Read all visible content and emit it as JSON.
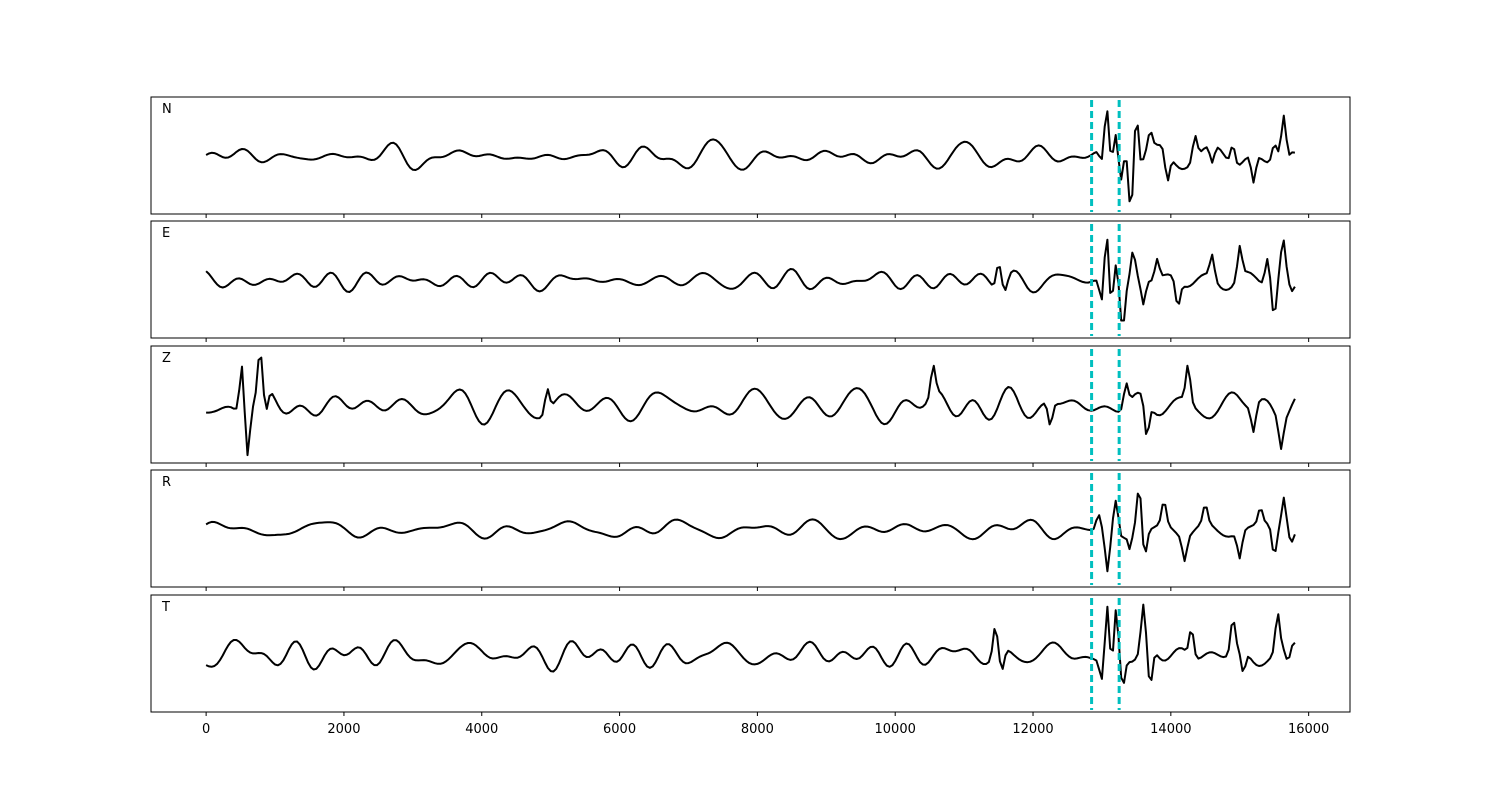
{
  "chart_data": {
    "type": "line",
    "x_range": [
      -800,
      16600
    ],
    "x_ticks": [
      "0",
      "2000",
      "4000",
      "6000",
      "8000",
      "10000",
      "12000",
      "14000",
      "16000"
    ],
    "x_tick_values": [
      0,
      2000,
      4000,
      6000,
      8000,
      10000,
      12000,
      14000,
      16000
    ],
    "grid": false,
    "trace_color": "#000000",
    "pick_color": "#00BFBF",
    "picks": [
      12850,
      13250
    ],
    "signal_end": 15800,
    "panels": [
      {
        "label": "N",
        "noise_amplitude": 0.22,
        "features": [
          {
            "x": 13000,
            "y": -0.25
          },
          {
            "x": 13070,
            "y": 0.92
          },
          {
            "x": 13130,
            "y": -0.2
          },
          {
            "x": 13200,
            "y": 0.55
          },
          {
            "x": 13280,
            "y": -0.35
          },
          {
            "x": 13340,
            "y": 0.3
          },
          {
            "x": 13420,
            "y": -0.95
          },
          {
            "x": 13500,
            "y": 0.9
          },
          {
            "x": 13560,
            "y": -0.2
          },
          {
            "x": 13700,
            "y": 0.35
          },
          {
            "x": 13950,
            "y": -0.55
          },
          {
            "x": 14350,
            "y": 0.45
          },
          {
            "x": 14600,
            "y": -0.35
          },
          {
            "x": 14900,
            "y": 0.4
          },
          {
            "x": 15200,
            "y": -0.55
          },
          {
            "x": 15500,
            "y": 0.3
          },
          {
            "x": 15640,
            "y": 0.7
          },
          {
            "x": 15700,
            "y": -0.15
          }
        ]
      },
      {
        "label": "E",
        "noise_amplitude": 0.22,
        "features": [
          {
            "x": 11500,
            "y": 0.48
          },
          {
            "x": 11600,
            "y": -0.2
          },
          {
            "x": 13000,
            "y": -0.5
          },
          {
            "x": 13070,
            "y": 1.0
          },
          {
            "x": 13130,
            "y": -0.55
          },
          {
            "x": 13200,
            "y": 0.45
          },
          {
            "x": 13300,
            "y": -0.8
          },
          {
            "x": 13450,
            "y": 0.55
          },
          {
            "x": 13600,
            "y": -0.5
          },
          {
            "x": 13800,
            "y": 0.4
          },
          {
            "x": 14100,
            "y": -0.5
          },
          {
            "x": 14600,
            "y": 0.45
          },
          {
            "x": 15000,
            "y": 0.6
          },
          {
            "x": 15400,
            "y": 0.5
          },
          {
            "x": 15500,
            "y": -0.7
          },
          {
            "x": 15630,
            "y": 0.7
          },
          {
            "x": 15750,
            "y": -0.2
          }
        ]
      },
      {
        "label": "Z",
        "noise_amplitude": 0.35,
        "features": [
          {
            "x": 520,
            "y": 0.95
          },
          {
            "x": 600,
            "y": -0.85
          },
          {
            "x": 780,
            "y": 0.8
          },
          {
            "x": 870,
            "y": -0.45
          },
          {
            "x": 4950,
            "y": 0.45
          },
          {
            "x": 10550,
            "y": 0.55
          },
          {
            "x": 12250,
            "y": -0.45
          },
          {
            "x": 13350,
            "y": 0.45
          },
          {
            "x": 13650,
            "y": -0.7
          },
          {
            "x": 14250,
            "y": 0.7
          },
          {
            "x": 15200,
            "y": -0.5
          },
          {
            "x": 15600,
            "y": -0.55
          }
        ]
      },
      {
        "label": "R",
        "noise_amplitude": 0.22,
        "features": [
          {
            "x": 12950,
            "y": 0.3
          },
          {
            "x": 13080,
            "y": -0.8
          },
          {
            "x": 13200,
            "y": 0.55
          },
          {
            "x": 13300,
            "y": -0.2
          },
          {
            "x": 13400,
            "y": -0.4
          },
          {
            "x": 13540,
            "y": 0.85
          },
          {
            "x": 13620,
            "y": -0.5
          },
          {
            "x": 13900,
            "y": 0.45
          },
          {
            "x": 14200,
            "y": -0.45
          },
          {
            "x": 14500,
            "y": 0.35
          },
          {
            "x": 15000,
            "y": -0.5
          },
          {
            "x": 15300,
            "y": 0.3
          },
          {
            "x": 15500,
            "y": -0.55
          },
          {
            "x": 15640,
            "y": 0.65
          },
          {
            "x": 15750,
            "y": -0.2
          }
        ]
      },
      {
        "label": "T",
        "noise_amplitude": 0.28,
        "features": [
          {
            "x": 11450,
            "y": 0.55
          },
          {
            "x": 11550,
            "y": -0.4
          },
          {
            "x": 13000,
            "y": -0.45
          },
          {
            "x": 13080,
            "y": 1.0
          },
          {
            "x": 13140,
            "y": -0.55
          },
          {
            "x": 13200,
            "y": 0.85
          },
          {
            "x": 13300,
            "y": -0.6
          },
          {
            "x": 13600,
            "y": 0.85
          },
          {
            "x": 13700,
            "y": -0.75
          },
          {
            "x": 14300,
            "y": 0.55
          },
          {
            "x": 14900,
            "y": 0.65
          },
          {
            "x": 15050,
            "y": -0.45
          },
          {
            "x": 15550,
            "y": 0.75
          },
          {
            "x": 15700,
            "y": -0.3
          }
        ]
      }
    ]
  }
}
